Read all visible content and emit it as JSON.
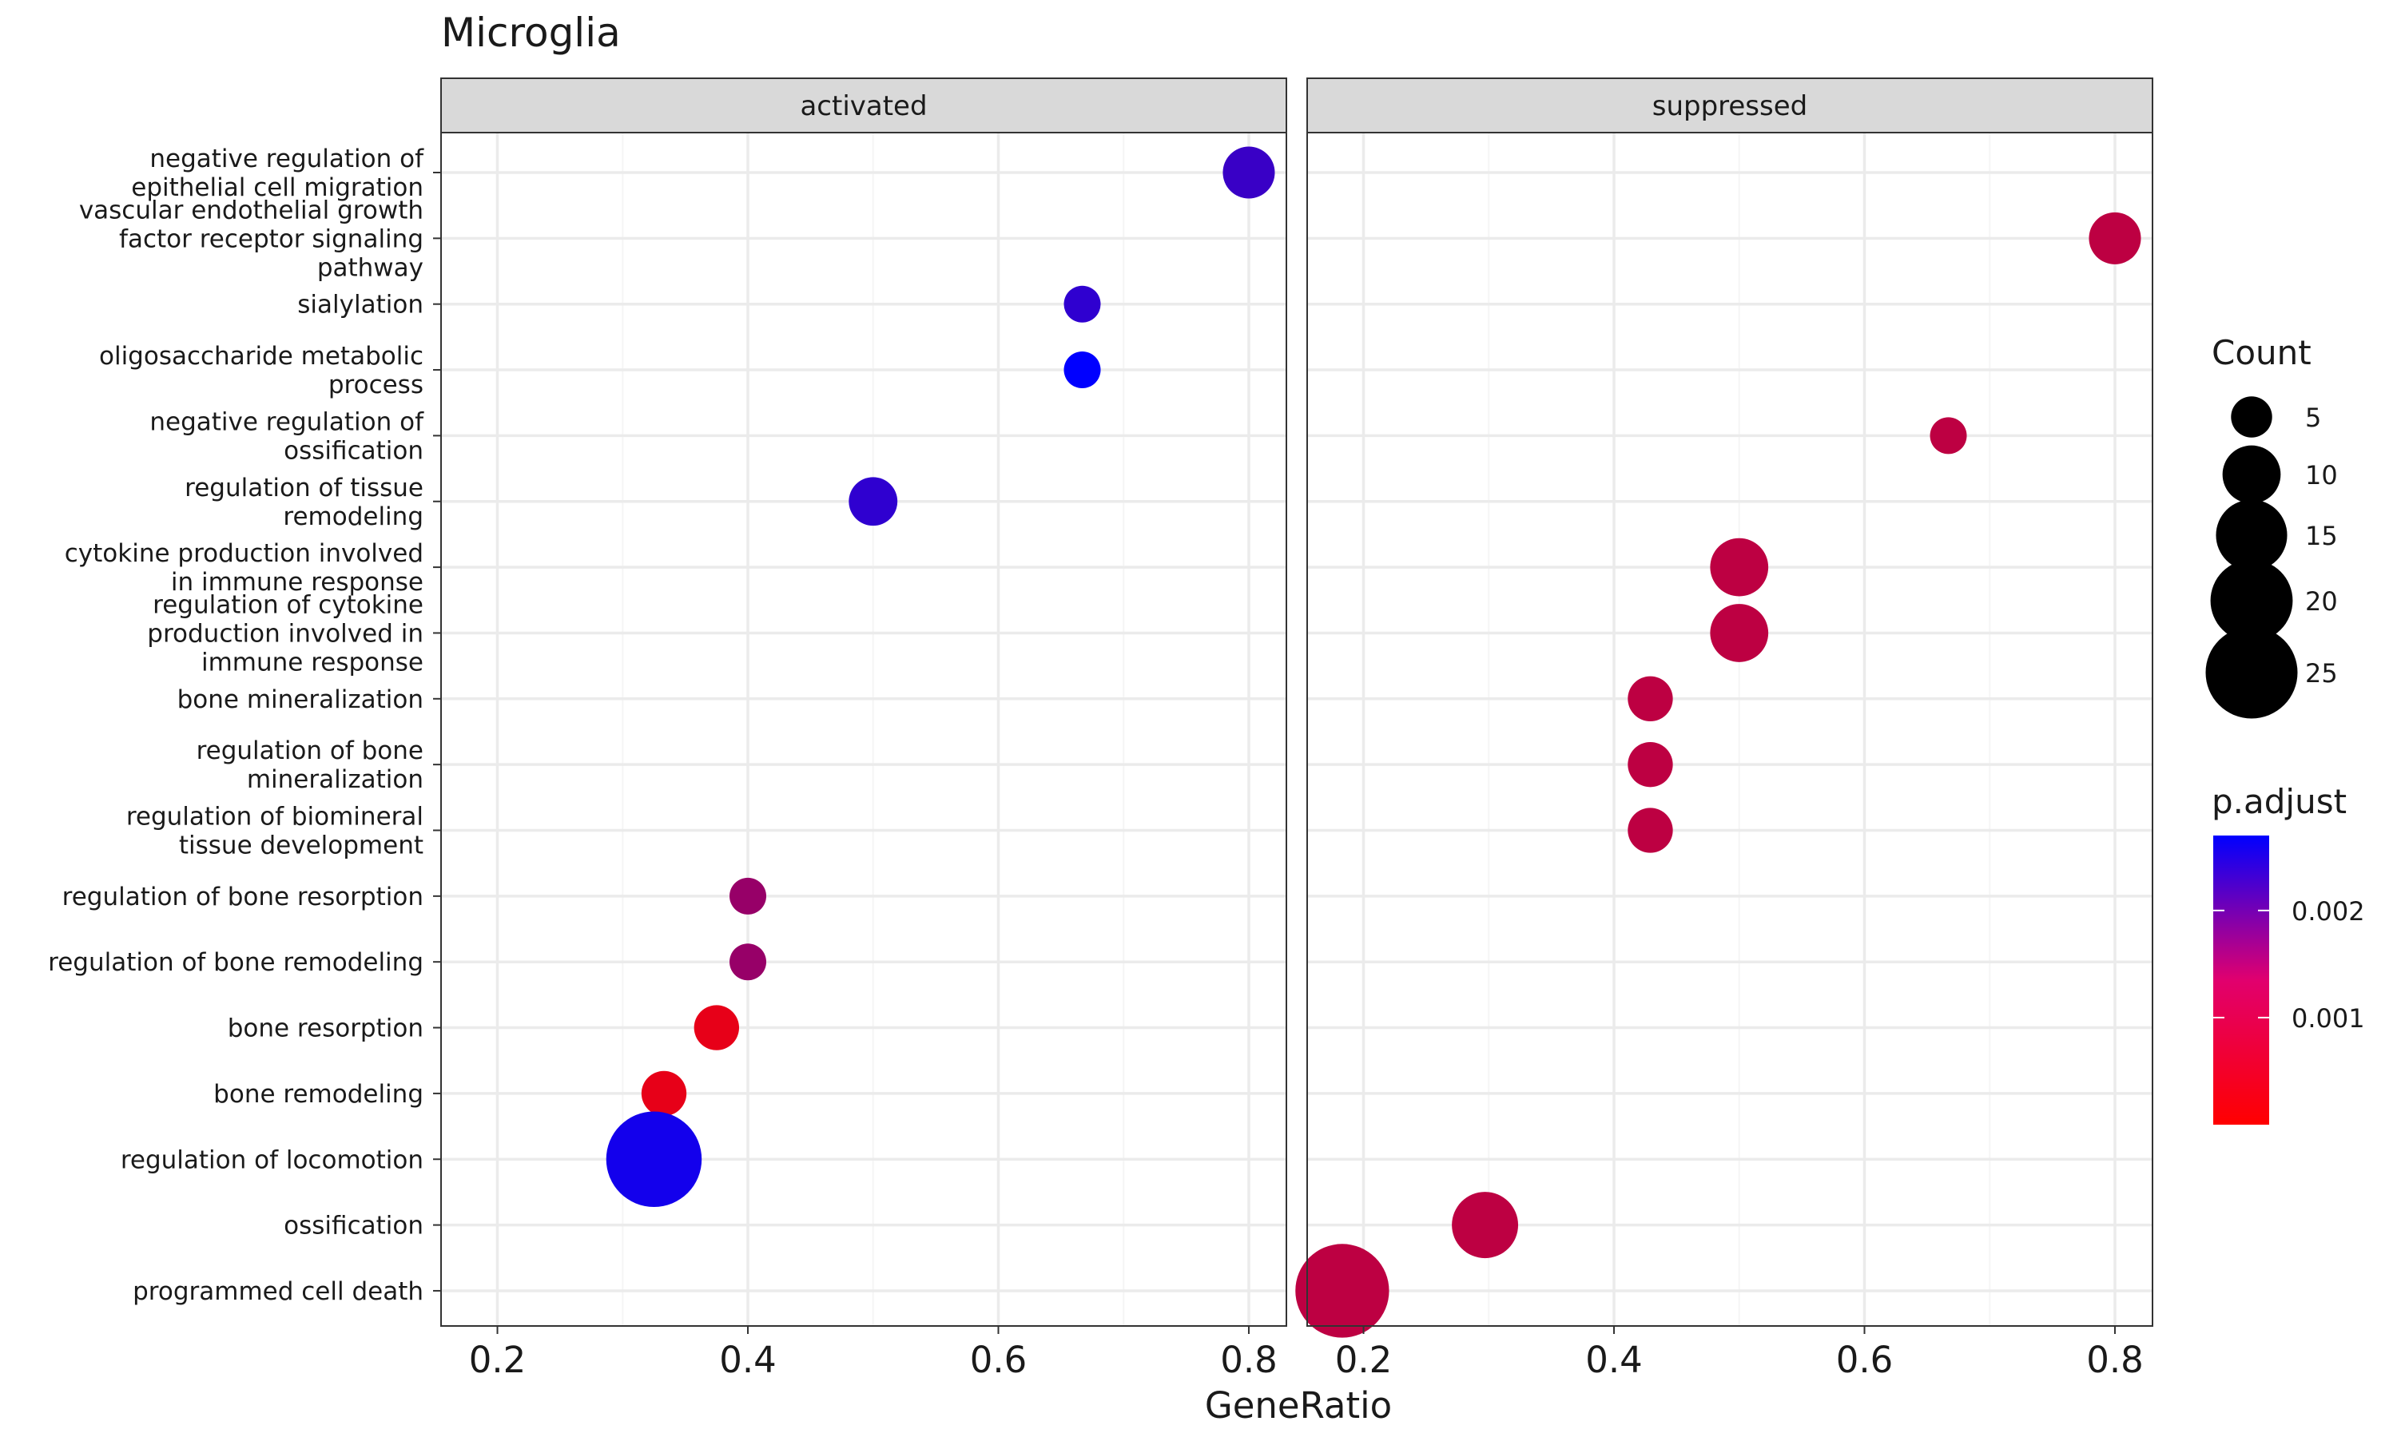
{
  "chart_data": {
    "type": "scatter",
    "title": "Microglia",
    "xlabel": "GeneRatio",
    "ylabel": "",
    "xlim": [
      0.155,
      0.83
    ],
    "xticks": [
      0.2,
      0.4,
      0.6,
      0.8
    ],
    "xtick_labels": [
      "0.2",
      "0.4",
      "0.6",
      "0.8"
    ],
    "grid": true,
    "panels": [
      "activated",
      "suppressed"
    ],
    "categories": [
      [
        "negative regulation of",
        "epithelial cell migration"
      ],
      [
        "vascular endothelial growth",
        "factor receptor signaling",
        "pathway"
      ],
      [
        "sialylation"
      ],
      [
        "oligosaccharide metabolic",
        "process"
      ],
      [
        "negative regulation of",
        "ossification"
      ],
      [
        "regulation of tissue",
        "remodeling"
      ],
      [
        "cytokine production involved",
        "in immune response"
      ],
      [
        "regulation of cytokine",
        "production involved in",
        "immune response"
      ],
      [
        "bone mineralization"
      ],
      [
        "regulation of bone",
        "mineralization"
      ],
      [
        "regulation of biomineral",
        "tissue development"
      ],
      [
        "regulation of bone resorption"
      ],
      [
        "regulation of bone remodeling"
      ],
      [
        "bone resorption"
      ],
      [
        "bone remodeling"
      ],
      [
        "regulation of locomotion"
      ],
      [
        "ossification"
      ],
      [
        "programmed cell death"
      ]
    ],
    "points": [
      {
        "panel": 0,
        "cat": 0,
        "x": 0.8,
        "count": 8,
        "padj": 0.0021
      },
      {
        "panel": 1,
        "cat": 1,
        "x": 0.8,
        "count": 8,
        "padj": 0.0007
      },
      {
        "panel": 0,
        "cat": 2,
        "x": 0.667,
        "count": 4,
        "padj": 0.0022
      },
      {
        "panel": 0,
        "cat": 3,
        "x": 0.667,
        "count": 4,
        "padj": 0.0027
      },
      {
        "panel": 1,
        "cat": 4,
        "x": 0.667,
        "count": 4,
        "padj": 0.0007
      },
      {
        "panel": 0,
        "cat": 5,
        "x": 0.5,
        "count": 7,
        "padj": 0.0022
      },
      {
        "panel": 1,
        "cat": 6,
        "x": 0.5,
        "count": 10,
        "padj": 0.0007
      },
      {
        "panel": 1,
        "cat": 7,
        "x": 0.5,
        "count": 10,
        "padj": 0.0007
      },
      {
        "panel": 1,
        "cat": 8,
        "x": 0.429,
        "count": 6,
        "padj": 0.0007
      },
      {
        "panel": 1,
        "cat": 9,
        "x": 0.429,
        "count": 6,
        "padj": 0.0007
      },
      {
        "panel": 1,
        "cat": 10,
        "x": 0.429,
        "count": 6,
        "padj": 0.0007
      },
      {
        "panel": 0,
        "cat": 11,
        "x": 0.4,
        "count": 4,
        "padj": 0.0011
      },
      {
        "panel": 0,
        "cat": 12,
        "x": 0.4,
        "count": 4,
        "padj": 0.0011
      },
      {
        "panel": 0,
        "cat": 13,
        "x": 0.375,
        "count": 6,
        "padj": 0.00025
      },
      {
        "panel": 0,
        "cat": 14,
        "x": 0.333,
        "count": 6,
        "padj": 0.00025
      },
      {
        "panel": 0,
        "cat": 15,
        "x": 0.325,
        "count": 27,
        "padj": 0.0025
      },
      {
        "panel": 1,
        "cat": 16,
        "x": 0.297,
        "count": 13,
        "padj": 0.0007
      },
      {
        "panel": 1,
        "cat": 17,
        "x": 0.183,
        "count": 26,
        "padj": 0.0007
      }
    ],
    "size_legend": {
      "title": "Count",
      "breaks": [
        5,
        10,
        15,
        20,
        25
      ],
      "labels": [
        "5",
        "10",
        "15",
        "20",
        "25"
      ]
    },
    "color_legend": {
      "title": "p.adjust",
      "range": [
        0.0,
        0.0027
      ],
      "breaks": [
        0.001,
        0.002
      ],
      "labels": [
        "0.001",
        "0.002"
      ],
      "low_color": "#ff0000",
      "high_color": "#0000ff"
    },
    "colors": {
      "strip_fill": "#d9d9d9",
      "panel_border": "#333333",
      "grid_major": "#ebebeb",
      "grid_minor": "#f5f5f5"
    }
  }
}
